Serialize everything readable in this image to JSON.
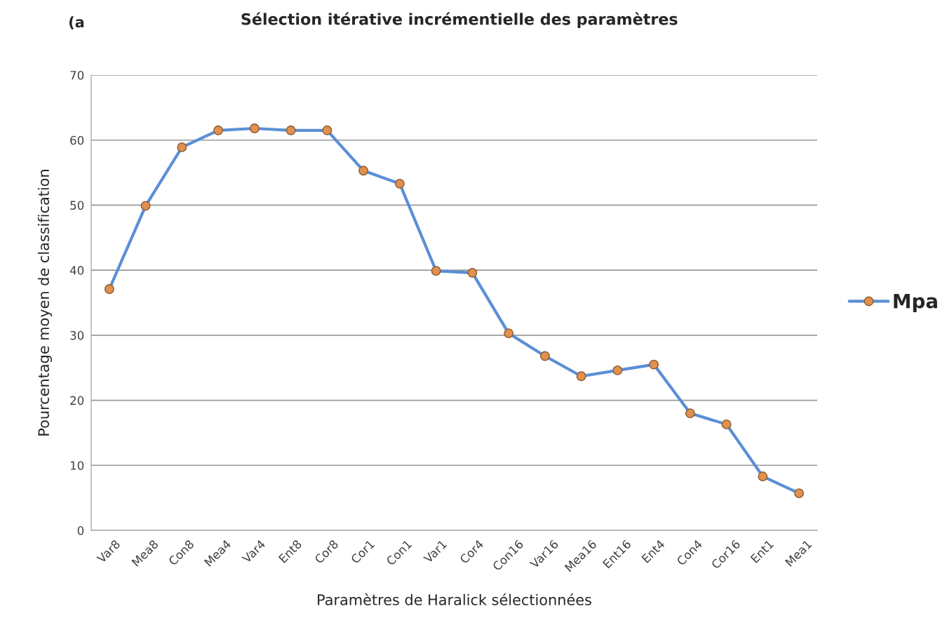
{
  "chart_data": {
    "type": "line",
    "title": "Sélection itérative incrémentielle des paramètres",
    "xlabel": "Paramètres de Haralick sélectionnées",
    "ylabel": "Pourcentage moyen de classification",
    "annotations": [
      "(a"
    ],
    "categories": [
      "Var8",
      "Mea8",
      "Con8",
      "Mea4",
      "Var4",
      "Ent8",
      "Cor8",
      "Cor1",
      "Con1",
      "Var1",
      "Cor4",
      "Con16",
      "Var16",
      "Mea16",
      "Ent16",
      "Ent4",
      "Con4",
      "Cor16",
      "Ent1",
      "Mea1"
    ],
    "series": [
      {
        "name": "Mpa",
        "color": "#5b8fd6",
        "values": [
          37.1,
          49.9,
          58.9,
          61.5,
          61.8,
          61.5,
          61.5,
          55.3,
          53.3,
          39.9,
          39.6,
          30.3,
          26.8,
          23.7,
          24.6,
          25.5,
          18.0,
          16.3,
          8.3,
          5.7
        ]
      }
    ],
    "ylim": [
      0,
      70
    ],
    "yticks": [
      0,
      10,
      20,
      30,
      40,
      50,
      60,
      70
    ],
    "grid": "y",
    "legend": "right",
    "marker": "circle",
    "line_style": "solid"
  }
}
